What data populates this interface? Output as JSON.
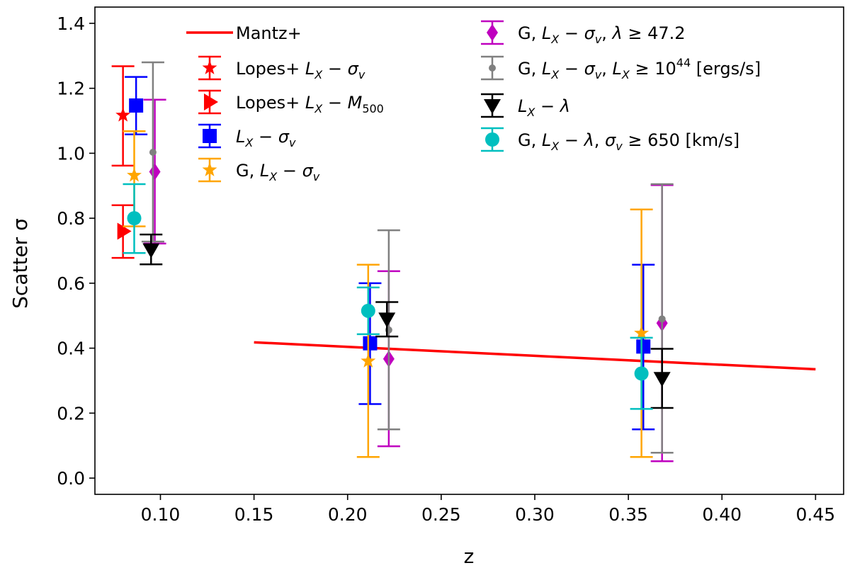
{
  "chart_data": {
    "type": "scatter",
    "xlabel": "z",
    "ylabel": "Scatter σ",
    "xlim": [
      0.065,
      0.465
    ],
    "ylim": [
      -0.05,
      1.45
    ],
    "xticks": [
      "0.10",
      "0.15",
      "0.20",
      "0.25",
      "0.30",
      "0.35",
      "0.40",
      "0.45"
    ],
    "xtick_values": [
      0.1,
      0.15,
      0.2,
      0.25,
      0.3,
      0.35,
      0.4,
      0.45
    ],
    "yticks": [
      "0.0",
      "0.2",
      "0.4",
      "0.6",
      "0.8",
      "1.0",
      "1.2",
      "1.4"
    ],
    "ytick_values": [
      0.0,
      0.2,
      0.4,
      0.6,
      0.8,
      1.0,
      1.2,
      1.4
    ],
    "grid": false,
    "legend_position": "top",
    "line": {
      "name": "Mantz+",
      "color": "#ff0000",
      "x": [
        0.15,
        0.45
      ],
      "y": [
        0.418,
        0.335
      ]
    },
    "series": [
      {
        "name": "Lopes+ LX−σv",
        "color": "#ff0000",
        "marker": "star",
        "points": [
          {
            "x": 0.08,
            "y": 1.117,
            "lo": 0.962,
            "hi": 1.268
          }
        ]
      },
      {
        "name": "Lopes+ LX−M500",
        "color": "#ff0000",
        "marker": "triangle-right",
        "points": [
          {
            "x": 0.08,
            "y": 0.76,
            "lo": 0.678,
            "hi": 0.84
          }
        ]
      },
      {
        "name": "LX−σv",
        "color": "#0000ff",
        "marker": "square",
        "points": [
          {
            "x": 0.087,
            "y": 1.147,
            "lo": 1.058,
            "hi": 1.235
          },
          {
            "x": 0.212,
            "y": 0.415,
            "lo": 0.228,
            "hi": 0.6
          },
          {
            "x": 0.358,
            "y": 0.405,
            "lo": 0.15,
            "hi": 0.657
          }
        ]
      },
      {
        "name": "G, LX−σv",
        "color": "#ffa500",
        "marker": "star",
        "points": [
          {
            "x": 0.086,
            "y": 0.932,
            "lo": 0.775,
            "hi": 1.068
          },
          {
            "x": 0.211,
            "y": 0.36,
            "lo": 0.065,
            "hi": 0.657
          },
          {
            "x": 0.357,
            "y": 0.446,
            "lo": 0.065,
            "hi": 0.827
          }
        ]
      },
      {
        "name": "G, LX−σv, λ≥47.2",
        "color": "#bf00bf",
        "marker": "diamond",
        "points": [
          {
            "x": 0.097,
            "y": 0.943,
            "lo": 0.722,
            "hi": 1.165
          },
          {
            "x": 0.222,
            "y": 0.367,
            "lo": 0.098,
            "hi": 0.637
          },
          {
            "x": 0.368,
            "y": 0.477,
            "lo": 0.052,
            "hi": 0.902
          }
        ]
      },
      {
        "name": "G, LX−σv, LX≥1044 [ergs/s]",
        "color": "#808080",
        "marker": "dot",
        "points": [
          {
            "x": 0.096,
            "y": 1.003,
            "lo": 0.728,
            "hi": 1.28
          },
          {
            "x": 0.222,
            "y": 0.456,
            "lo": 0.15,
            "hi": 0.763
          },
          {
            "x": 0.368,
            "y": 0.49,
            "lo": 0.078,
            "hi": 0.905
          }
        ]
      },
      {
        "name": "LX−λ",
        "color": "#000000",
        "marker": "triangle-down",
        "points": [
          {
            "x": 0.095,
            "y": 0.703,
            "lo": 0.658,
            "hi": 0.75
          },
          {
            "x": 0.221,
            "y": 0.49,
            "lo": 0.436,
            "hi": 0.542
          },
          {
            "x": 0.368,
            "y": 0.307,
            "lo": 0.216,
            "hi": 0.398
          }
        ]
      },
      {
        "name": "G, LX−λ, σv≥ 650 [km/s]",
        "color": "#00bfbf",
        "marker": "circle",
        "points": [
          {
            "x": 0.086,
            "y": 0.8,
            "lo": 0.693,
            "hi": 0.905
          },
          {
            "x": 0.211,
            "y": 0.515,
            "lo": 0.443,
            "hi": 0.587
          },
          {
            "x": 0.357,
            "y": 0.322,
            "lo": 0.213,
            "hi": 0.432
          }
        ]
      }
    ],
    "legend": {
      "col1": [
        "Mantz+",
        "Lopes+ ",
        "Lopes+ ",
        "",
        "G, "
      ],
      "col2": [
        "G, ",
        "G, ",
        "",
        "G, "
      ],
      "tokens": {
        "L": "L",
        "X": "X",
        "minus": "−",
        "sigma": "σ",
        "v": "v",
        "M": "M",
        "M500sub": "500",
        "lambda": "λ",
        "comma": ", ",
        "geq": " ≥ ",
        "lambda_val": "47.2",
        "ten": "10",
        "exp": "44",
        "ergs": " [ergs/s]",
        "sigma_val": " 650 [km/s]"
      }
    }
  }
}
